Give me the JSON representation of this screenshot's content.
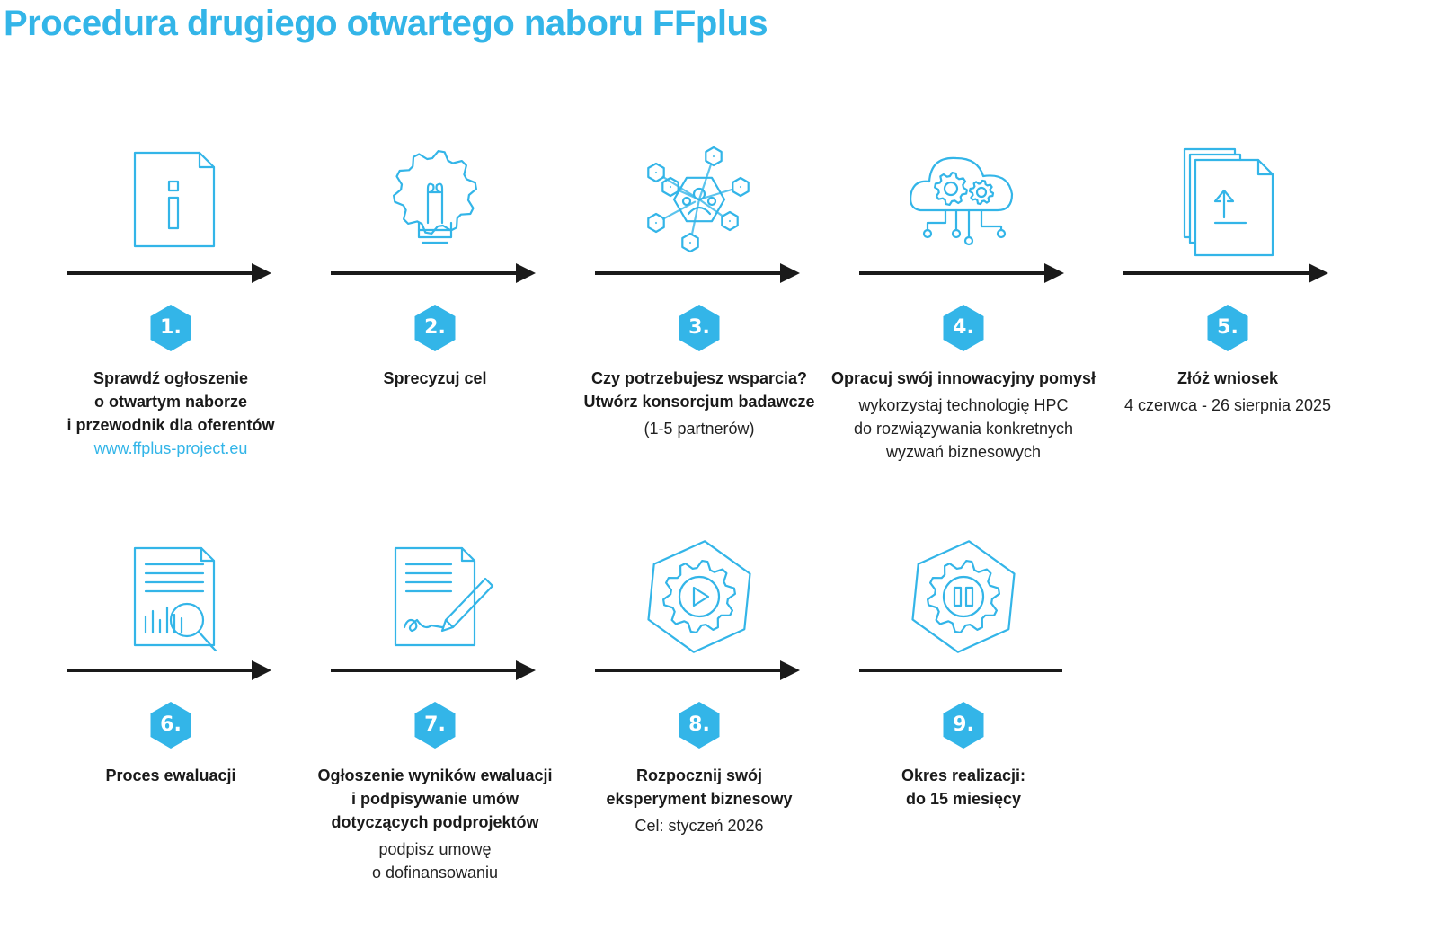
{
  "title": "Procedura drugiego otwartego naboru FFplus",
  "colors": {
    "accent": "#33b5e8",
    "line": "#1a1a1a",
    "text": "#1a1a1a"
  },
  "steps": [
    {
      "number": "1.",
      "icon": "info-document-icon",
      "heading": [
        "Sprawdź ogłoszenie",
        "o otwartym naborze",
        "i przewodnik dla oferentów"
      ],
      "sub": [],
      "link": "www.ffplus-project.eu"
    },
    {
      "number": "2.",
      "icon": "lightbulb-gear-icon",
      "heading": [
        "Sprecyzuj cel"
      ],
      "sub": [],
      "link": ""
    },
    {
      "number": "3.",
      "icon": "consortium-network-icon",
      "heading": [
        "Czy potrzebujesz wsparcia?",
        "Utwórz konsorcjum badawcze"
      ],
      "sub": [
        "(1-5 partnerów)"
      ],
      "link": ""
    },
    {
      "number": "4.",
      "icon": "cloud-gears-icon",
      "heading": [
        "Opracuj swój innowacyjny pomysł"
      ],
      "sub": [
        "wykorzystaj technologię HPC",
        "do rozwiązywania konkretnych",
        "wyzwań biznesowych"
      ],
      "link": ""
    },
    {
      "number": "5.",
      "icon": "upload-documents-icon",
      "heading": [
        "Złóż wniosek"
      ],
      "sub": [
        "4 czerwca - 26 sierpnia 2025"
      ],
      "link": ""
    },
    {
      "number": "6.",
      "icon": "document-magnifier-icon",
      "heading": [
        "Proces ewaluacji"
      ],
      "sub": [],
      "link": ""
    },
    {
      "number": "7.",
      "icon": "document-signing-icon",
      "heading": [
        "Ogłoszenie wyników ewaluacji",
        "i podpisywanie umów",
        "dotyczących podprojektów"
      ],
      "sub": [
        "podpisz umowę",
        "o dofinansowaniu"
      ],
      "link": ""
    },
    {
      "number": "8.",
      "icon": "gear-play-icon",
      "heading": [
        "Rozpocznij swój",
        "eksperyment biznesowy"
      ],
      "sub": [
        "Cel: styczeń 2026"
      ],
      "link": ""
    },
    {
      "number": "9.",
      "icon": "gear-pause-icon",
      "heading": [
        "Okres realizacji:",
        "do 15 miesięcy"
      ],
      "sub": [],
      "link": ""
    }
  ]
}
